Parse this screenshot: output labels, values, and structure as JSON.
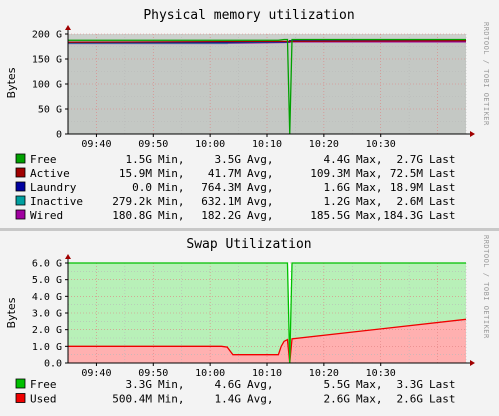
{
  "watermark": "RRDTOOL / TOBI OETIKER",
  "chart_data": [
    {
      "type": "area",
      "title": "Physical memory utilization",
      "ylabel": "Bytes",
      "ylim": [
        0,
        200
      ],
      "yunit": "G",
      "yticks": [
        {
          "value": 0,
          "label": "0"
        },
        {
          "value": 50,
          "label": "50 G"
        },
        {
          "value": 100,
          "label": "100 G"
        },
        {
          "value": 150,
          "label": "150 G"
        },
        {
          "value": 200,
          "label": "200 G"
        }
      ],
      "xlim": [
        "09:35",
        "10:45"
      ],
      "xticks": [
        "09:40",
        "09:50",
        "10:00",
        "10:10",
        "10:20",
        "10:30"
      ],
      "grid": true,
      "series": [
        {
          "name": "Wired",
          "color": "#a000a0",
          "x": [
            "09:35",
            "10:03",
            "10:03",
            "10:13",
            "10:14",
            "10:14",
            "10:45"
          ],
          "values": [
            181.0,
            181.0,
            181.5,
            183.0,
            183.5,
            184.3,
            184.3
          ]
        },
        {
          "name": "Inactive",
          "color": "#00a0a0",
          "x": [
            "09:35",
            "10:03",
            "10:03",
            "10:13",
            "10:14",
            "10:14",
            "10:45"
          ],
          "values": [
            182.0,
            182.0,
            182.5,
            184.0,
            184.5,
            186.5,
            186.5
          ]
        },
        {
          "name": "Laundry",
          "color": "#0000a0",
          "x": [
            "09:35",
            "10:03",
            "10:03",
            "10:14",
            "10:14",
            "10:45"
          ],
          "values": [
            183.5,
            183.5,
            183.5,
            184.5,
            186.5,
            186.5
          ]
        },
        {
          "name": "Active",
          "color": "#a00000",
          "x": [
            "09:35",
            "10:45"
          ],
          "values": [
            183.6,
            186.6
          ]
        },
        {
          "name": "Free",
          "color": "#00a000",
          "x": [
            "09:35",
            "10:03",
            "10:03",
            "10:12",
            "10:13",
            "10:13.6",
            "10:14",
            "10:14.4",
            "10:45"
          ],
          "values": [
            187.5,
            187.5,
            187.5,
            187.5,
            189,
            189,
            0,
            189,
            189
          ]
        }
      ],
      "legend": [
        {
          "name": "Free",
          "color": "#00a000",
          "min": "1.5G",
          "avg": "3.5G",
          "max": "4.4G",
          "last": "2.7G"
        },
        {
          "name": "Active",
          "color": "#a00000",
          "min": "15.9M",
          "avg": "41.7M",
          "max": "109.3M",
          "last": "72.5M"
        },
        {
          "name": "Laundry",
          "color": "#0000a0",
          "min": "0.0",
          "avg": "764.3M",
          "max": "1.6G",
          "last": "18.9M"
        },
        {
          "name": "Inactive",
          "color": "#00a0a0",
          "min": "279.2k",
          "avg": "632.1M",
          "max": "1.2G",
          "last": "2.6M"
        },
        {
          "name": "Wired",
          "color": "#a000a0",
          "min": "180.8G",
          "avg": "182.2G",
          "max": "185.5G",
          "last": "184.3G"
        }
      ],
      "legend_words": {
        "min": "Min,",
        "avg": "Avg,",
        "max": "Max,",
        "last": "Last"
      }
    },
    {
      "type": "area",
      "title": "Swap Utilization",
      "ylabel": "Bytes",
      "ylim": [
        0,
        6
      ],
      "yunit": "G",
      "yticks": [
        {
          "value": 0,
          "label": "0.0"
        },
        {
          "value": 1,
          "label": "1.0 G"
        },
        {
          "value": 2,
          "label": "2.0 G"
        },
        {
          "value": 3,
          "label": "3.0 G"
        },
        {
          "value": 4,
          "label": "4.0 G"
        },
        {
          "value": 5,
          "label": "5.0 G"
        },
        {
          "value": 6,
          "label": "6.0 G"
        }
      ],
      "xlim": [
        "09:35",
        "10:45"
      ],
      "xticks": [
        "09:40",
        "09:50",
        "10:00",
        "10:10",
        "10:20",
        "10:30"
      ],
      "grid": true,
      "series": [
        {
          "name": "Used",
          "color": "#f00000",
          "fill": "#ffb0b0",
          "x": [
            "09:35",
            "10:02",
            "10:03",
            "10:04",
            "10:12",
            "10:12.5",
            "10:13",
            "10:13.6",
            "10:14",
            "10:14.4",
            "10:45"
          ],
          "values": [
            1.0,
            1.0,
            0.95,
            0.5,
            0.5,
            1.0,
            1.3,
            1.4,
            0,
            1.45,
            2.62
          ]
        },
        {
          "name": "Free",
          "color": "#00c000",
          "fill": "#b8f0b8",
          "x": [
            "09:35",
            "10:13.6",
            "10:14",
            "10:14.4",
            "10:45"
          ],
          "values": [
            6.0,
            6.0,
            0,
            6.0,
            6.0
          ]
        }
      ],
      "legend": [
        {
          "name": "Free",
          "color": "#00c000",
          "min": "3.3G",
          "avg": "4.6G",
          "max": "5.5G",
          "last": "3.3G"
        },
        {
          "name": "Used",
          "color": "#f00000",
          "min": "500.4M",
          "avg": "1.4G",
          "max": "2.6G",
          "last": "2.6G"
        }
      ],
      "legend_words": {
        "min": "Min,",
        "avg": "Avg,",
        "max": "Max,",
        "last": "Last"
      }
    }
  ]
}
